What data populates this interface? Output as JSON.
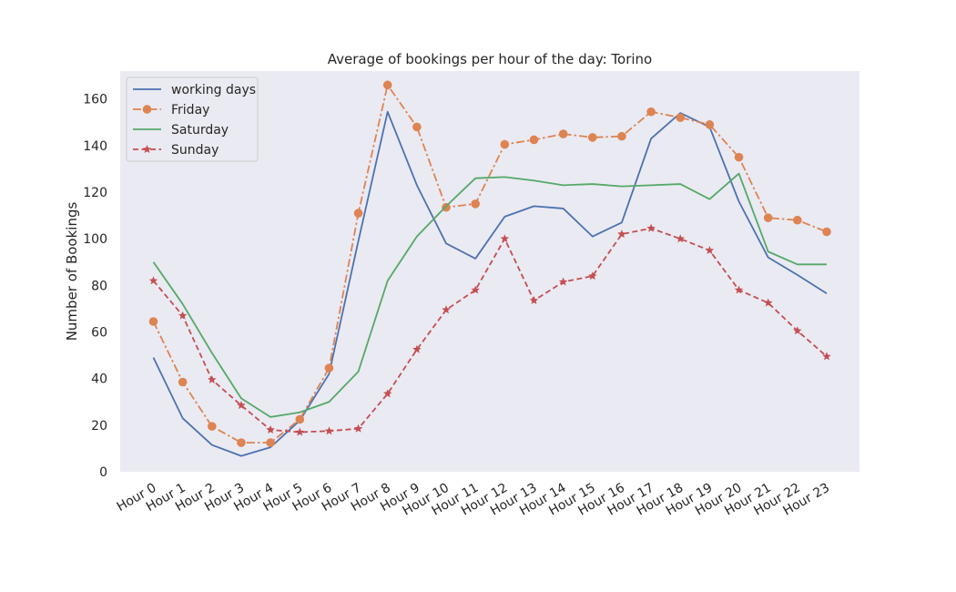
{
  "chart_data": {
    "type": "line",
    "title": "Average of bookings per hour of the day: Torino",
    "xlabel": "",
    "ylabel": "Number of Bookings",
    "categories": [
      "Hour 0",
      "Hour 1",
      "Hour 2",
      "Hour 3",
      "Hour 4",
      "Hour 5",
      "Hour 6",
      "Hour 7",
      "Hour 8",
      "Hour 9",
      "Hour 10",
      "Hour 11",
      "Hour 12",
      "Hour 13",
      "Hour 14",
      "Hour 15",
      "Hour 16",
      "Hour 17",
      "Hour 18",
      "Hour 19",
      "Hour 20",
      "Hour 21",
      "Hour 22",
      "Hour 23"
    ],
    "ylim": [
      0,
      172
    ],
    "yticks": [
      0,
      20,
      40,
      60,
      80,
      100,
      120,
      140,
      160
    ],
    "grid": false,
    "legend_position": "top-left",
    "background_color": "#eaeaf2",
    "series": [
      {
        "name": "working days",
        "color": "#4c72b0",
        "line_style": "solid",
        "marker": "none",
        "values": [
          49,
          23,
          11.5,
          6.8,
          10.5,
          22,
          42,
          99,
          154.5,
          123,
          98,
          91.5,
          109.5,
          114,
          113,
          101,
          107,
          143,
          154,
          148,
          116,
          92,
          84.5,
          76.5
        ]
      },
      {
        "name": "Friday",
        "color": "#dd8452",
        "line_style": "dashdot",
        "marker": "circle",
        "values": [
          64.5,
          38.5,
          19.5,
          12.5,
          12.5,
          22.5,
          44.5,
          111,
          166,
          148,
          113.5,
          115,
          140.5,
          142.5,
          145,
          143.5,
          144,
          154.5,
          152,
          149,
          135,
          109,
          108,
          103
        ]
      },
      {
        "name": "Saturday",
        "color": "#55a868",
        "line_style": "solid",
        "marker": "none",
        "values": [
          90,
          72,
          51,
          31.5,
          23.5,
          25.5,
          30,
          43,
          82,
          101,
          114,
          126,
          126.5,
          125,
          123,
          123.5,
          122.5,
          123,
          123.5,
          117,
          128,
          94.5,
          89,
          89
        ]
      },
      {
        "name": "Sunday",
        "color": "#c44e52",
        "line_style": "dashed",
        "marker": "star",
        "values": [
          82,
          67,
          39.5,
          28.5,
          18,
          17,
          17.5,
          18.5,
          33.5,
          52.5,
          69.5,
          78,
          100,
          73.5,
          81.5,
          84,
          102,
          104.5,
          100,
          95,
          78,
          72.5,
          60.5,
          49.5
        ]
      }
    ]
  }
}
